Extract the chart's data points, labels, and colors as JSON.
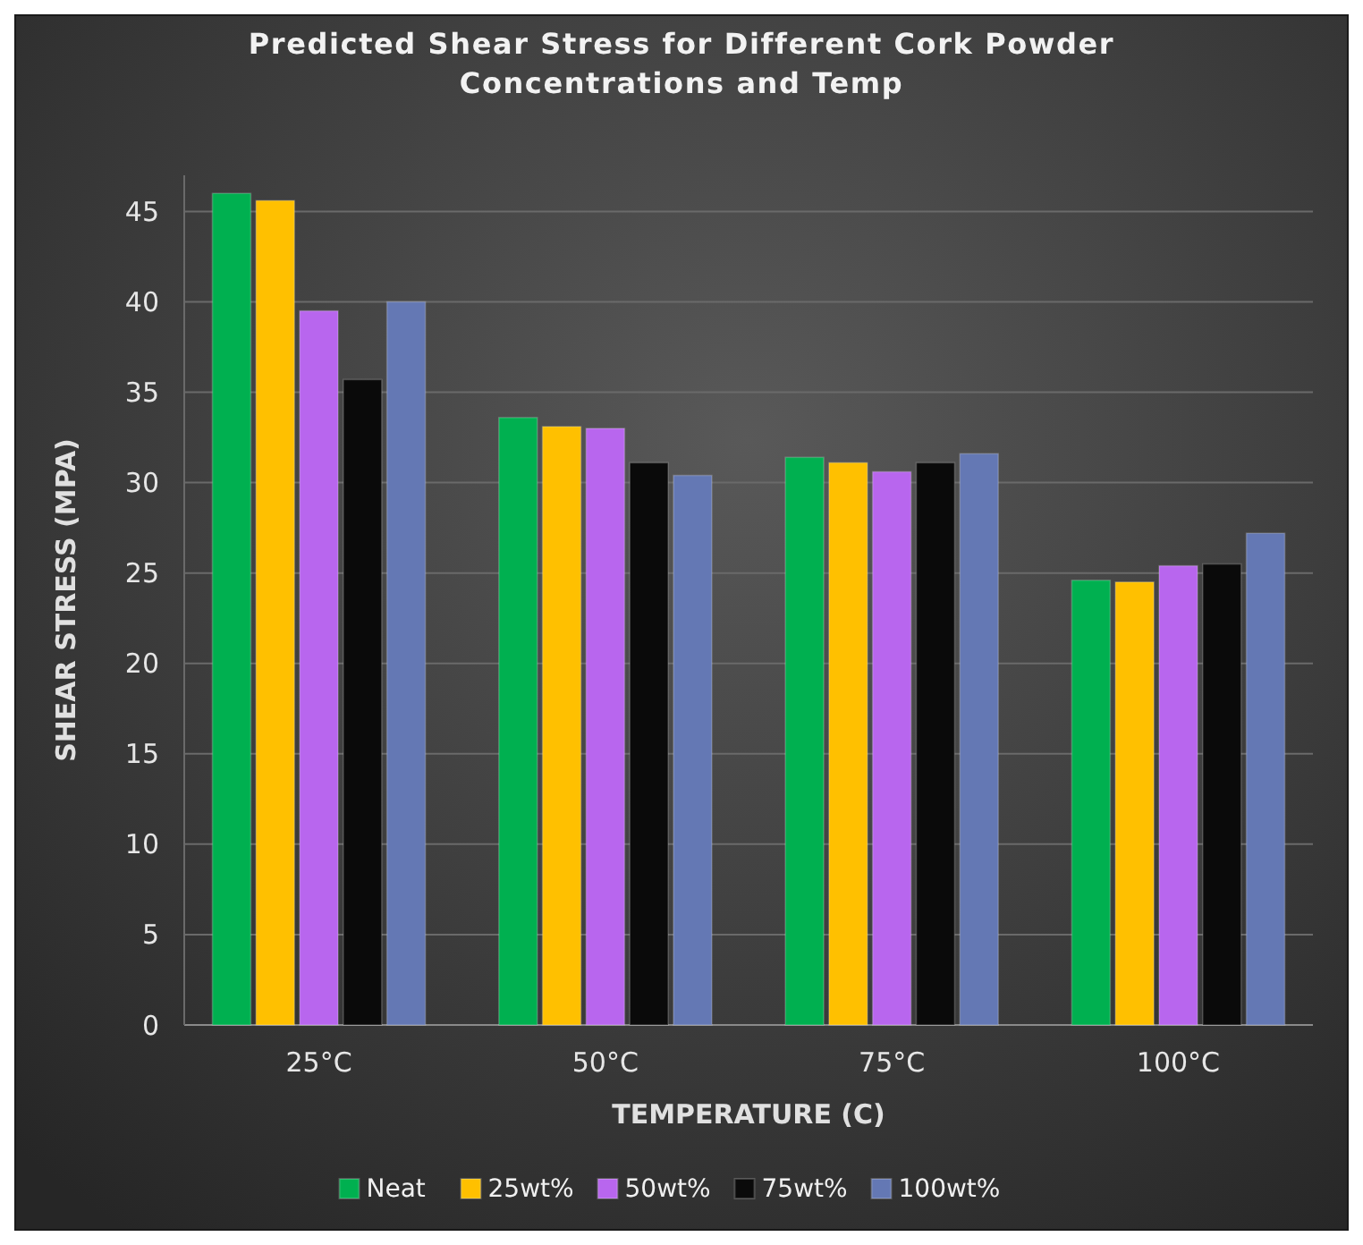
{
  "chart_data": {
    "type": "bar",
    "title": "Predicted Shear Stress for Different Cork Powder Concentrations and Temp",
    "xlabel": "TEMPERATURE (C)",
    "ylabel": "SHEAR STRESS (MPA)",
    "categories": [
      "25°C",
      "50°C",
      "75°C",
      "100°C"
    ],
    "series": [
      {
        "name": "Neat",
        "color": "#00b050",
        "values": [
          46,
          33.6,
          31.4,
          24.6
        ]
      },
      {
        "name": "25wt%",
        "color": "#ffc000",
        "values": [
          45.6,
          33.1,
          31.1,
          24.5
        ]
      },
      {
        "name": "50wt%",
        "color": "#b866ee",
        "values": [
          39.5,
          33,
          30.6,
          25.4
        ]
      },
      {
        "name": "75wt%",
        "color": "#0a0a0a",
        "values": [
          35.7,
          31.1,
          31.1,
          25.5
        ]
      },
      {
        "name": "100wt%",
        "color": "#6478b4",
        "values": [
          40,
          30.4,
          31.6,
          27.2
        ]
      }
    ],
    "ylim": [
      0,
      47
    ],
    "yticks": [
      0,
      5,
      10,
      15,
      20,
      25,
      30,
      35,
      40,
      45
    ],
    "grid": "y",
    "legend": "bottom"
  }
}
